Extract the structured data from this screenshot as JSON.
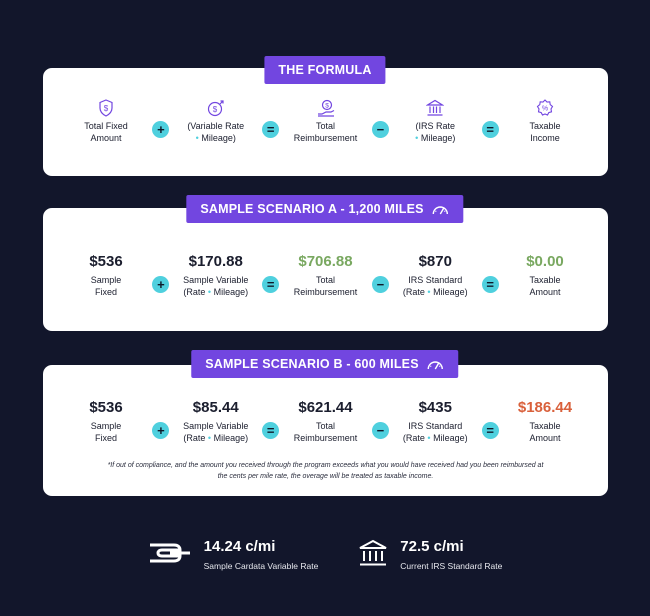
{
  "formula": {
    "title": "THE FORMULA",
    "items": [
      {
        "icon": "dollar-shield-icon",
        "label1": "Total Fixed",
        "label2": "Amount"
      },
      {
        "icon": "dollar-growth-icon",
        "label1": "(Variable Rate",
        "label2a": "Rate",
        "label2b": "Mileage)"
      },
      {
        "icon": "reimbursement-hand-icon",
        "label1": "Total",
        "label2": "Reimbursement"
      },
      {
        "icon": "bank-icon",
        "label1": "(IRS Rate",
        "label2b": "Mileage)"
      },
      {
        "icon": "percent-badge-icon",
        "label1": "Taxable",
        "label2": "Income"
      }
    ],
    "ops": [
      "+",
      "=",
      "−",
      "="
    ]
  },
  "scenario_a": {
    "title": "SAMPLE SCENARIO A - 1,200 MILES",
    "items": [
      {
        "value": "$536",
        "label1": "Sample",
        "label2": "Fixed"
      },
      {
        "value": "$170.88",
        "label1": "Sample Variable",
        "label2a": "(Rate",
        "label2b": "Mileage)"
      },
      {
        "value": "$706.88",
        "label1": "Total",
        "label2": "Reimbursement"
      },
      {
        "value": "$870",
        "label1": "IRS Standard",
        "label2a": "(Rate",
        "label2b": "Mileage)"
      },
      {
        "value": "$0.00",
        "label1": "Taxable",
        "label2": "Amount"
      }
    ],
    "ops": [
      "+",
      "=",
      "−",
      "="
    ]
  },
  "scenario_b": {
    "title": "SAMPLE SCENARIO B - 600 MILES",
    "items": [
      {
        "value": "$536",
        "label1": "Sample",
        "label2": "Fixed"
      },
      {
        "value": "$85.44",
        "label1": "Sample Variable",
        "label2a": "(Rate",
        "label2b": "Mileage)"
      },
      {
        "value": "$621.44",
        "label1": "Total",
        "label2": "Reimbursement"
      },
      {
        "value": "$435",
        "label1": "IRS Standard",
        "label2a": "(Rate",
        "label2b": "Mileage)"
      },
      {
        "value": "$186.44",
        "label1": "Taxable",
        "label2": "Amount"
      }
    ],
    "ops": [
      "+",
      "=",
      "−",
      "="
    ],
    "footnote": "*If out of compliance, and the amount you received through the program exceeds what you would have received had you been reimbursed at the cents per mile rate, the overage will be treated as taxable income."
  },
  "stats": [
    {
      "icon": "cardata-logo-icon",
      "value": "14.24 c/mi",
      "label": "Sample Cardata Variable Rate"
    },
    {
      "icon": "bank-icon",
      "value": "72.5 c/mi",
      "label": "Current IRS Standard Rate"
    }
  ],
  "dot": "•",
  "colors": {
    "background": "#12162b",
    "accent_purple": "#7246e0",
    "accent_cyan": "#4fd0de",
    "positive_green": "#79a860",
    "taxable_red": "#d9603b"
  }
}
